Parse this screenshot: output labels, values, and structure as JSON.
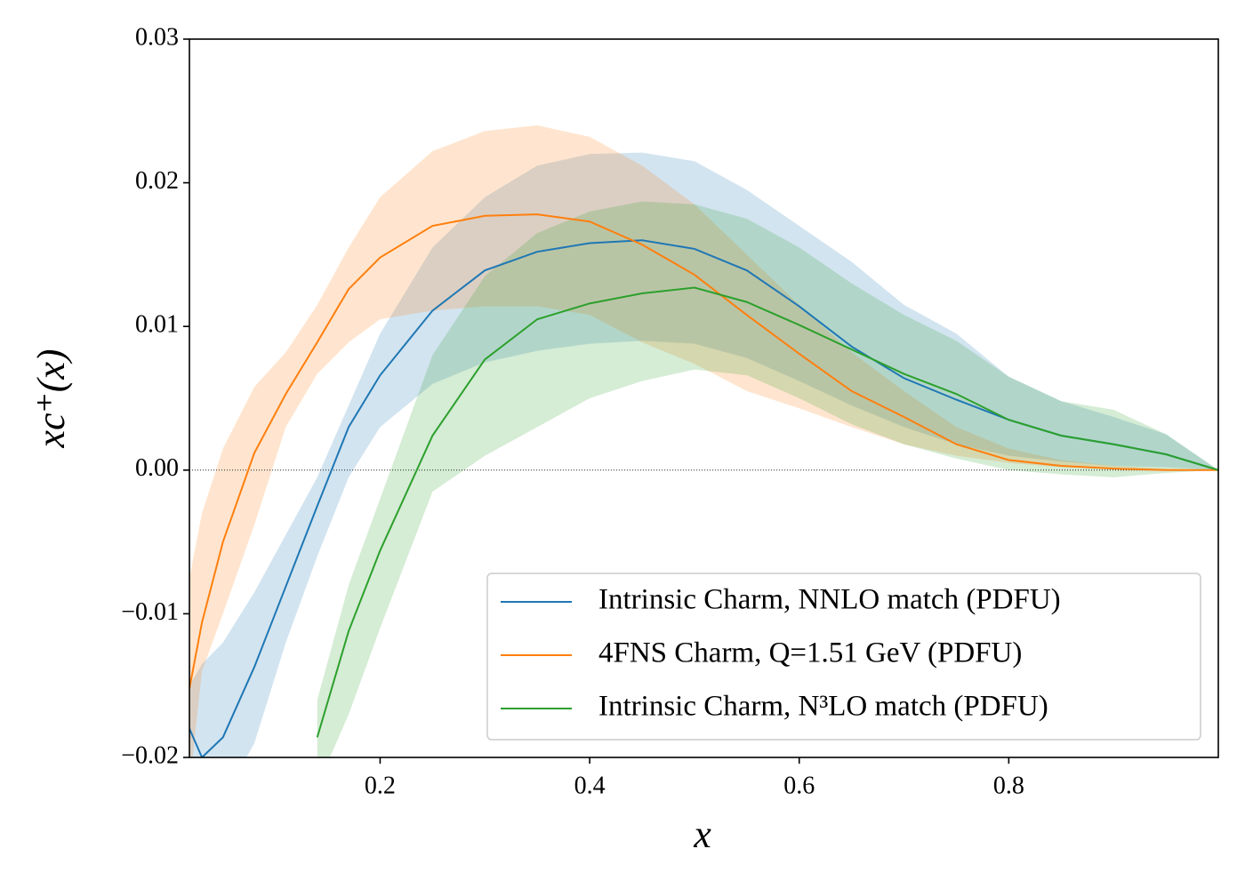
{
  "chart_data": {
    "type": "line",
    "x_label": "x",
    "y_label": "xc⁺(x)",
    "x": [
      0.018,
      0.03,
      0.05,
      0.08,
      0.11,
      0.14,
      0.17,
      0.2,
      0.25,
      0.3,
      0.35,
      0.4,
      0.45,
      0.5,
      0.55,
      0.6,
      0.65,
      0.7,
      0.75,
      0.8,
      0.85,
      0.9,
      0.95,
      1.0
    ],
    "series": [
      {
        "name": "Intrinsic Charm, NNLO match (PDFU)",
        "color": "#1f77b4",
        "values": [
          -0.018,
          -0.02,
          -0.0186,
          -0.0137,
          -0.0081,
          -0.0025,
          0.003,
          0.0066,
          0.0111,
          0.0139,
          0.0152,
          0.0158,
          0.016,
          0.0154,
          0.0139,
          0.0114,
          0.0086,
          0.0064,
          0.0049,
          0.0035,
          0.0024,
          0.0018,
          0.0011,
          0
        ],
        "upper": [
          -0.015,
          -0.0135,
          -0.012,
          -0.0085,
          -0.0045,
          -0.0005,
          0.0045,
          0.0095,
          0.0155,
          0.019,
          0.0212,
          0.022,
          0.0221,
          0.0215,
          0.0195,
          0.017,
          0.0145,
          0.0115,
          0.0095,
          0.0065,
          0.0048,
          0.0037,
          0.0025,
          0
        ],
        "lower": [
          -0.022,
          -0.024,
          -0.023,
          -0.019,
          -0.012,
          -0.006,
          -0.0005,
          0.003,
          0.006,
          0.0075,
          0.0083,
          0.0088,
          0.009,
          0.0088,
          0.0078,
          0.0062,
          0.0045,
          0.003,
          0.0018,
          0.001,
          0.0006,
          0.0003,
          0.0002,
          0
        ]
      },
      {
        "name": "4FNS Charm, Q=1.51 GeV (PDFU)",
        "color": "#ff7f0e",
        "values": [
          -0.0152,
          -0.0106,
          -0.005,
          0.0012,
          0.0053,
          0.0089,
          0.0126,
          0.0148,
          0.017,
          0.0177,
          0.0178,
          0.0173,
          0.0157,
          0.0136,
          0.0108,
          0.0081,
          0.0055,
          0.0037,
          0.0018,
          0.0007,
          0.0003,
          0.0001,
          0,
          0
        ],
        "upper": [
          -0.0075,
          -0.003,
          0.0015,
          0.0058,
          0.0082,
          0.0115,
          0.0155,
          0.019,
          0.0222,
          0.0236,
          0.024,
          0.0232,
          0.0212,
          0.0185,
          0.015,
          0.0115,
          0.0082,
          0.0055,
          0.003,
          0.0015,
          0.0007,
          0.0003,
          0.0001,
          0
        ],
        "lower": [
          -0.022,
          -0.014,
          -0.01,
          -0.0038,
          0.003,
          0.0067,
          0.0089,
          0.0105,
          0.0111,
          0.0114,
          0.0114,
          0.0108,
          0.0089,
          0.0074,
          0.0055,
          0.0043,
          0.003,
          0.0018,
          0.001,
          0.0005,
          0.0002,
          0.0001,
          0,
          0
        ]
      },
      {
        "name": "Intrinsic Charm, N³LO match (PDFU)",
        "color": "#2ca02c",
        "values": [
          null,
          null,
          null,
          null,
          null,
          -0.0186,
          -0.0112,
          -0.0056,
          0.0024,
          0.0077,
          0.0105,
          0.0116,
          0.0123,
          0.0127,
          0.0117,
          0.0101,
          0.0084,
          0.0067,
          0.0053,
          0.0035,
          0.0024,
          0.0018,
          0.0011,
          0
        ],
        "upper": [
          null,
          null,
          null,
          null,
          null,
          -0.016,
          -0.008,
          -0.002,
          0.008,
          0.0135,
          0.0165,
          0.018,
          0.0187,
          0.0185,
          0.0175,
          0.0155,
          0.013,
          0.0108,
          0.009,
          0.0065,
          0.0048,
          0.0042,
          0.0025,
          0
        ],
        "lower": [
          null,
          null,
          null,
          null,
          null,
          -0.022,
          -0.017,
          -0.011,
          -0.0015,
          0.001,
          0.003,
          0.005,
          0.0062,
          0.007,
          0.0066,
          0.005,
          0.0032,
          0.0018,
          0.0008,
          0,
          -0.0003,
          -0.0005,
          -0.0002,
          0
        ]
      }
    ],
    "band_opacity": 0.2,
    "xlim": [
      0.018,
      1.0
    ],
    "ylim": [
      -0.02,
      0.03
    ],
    "xticks": [
      0.2,
      0.4,
      0.6,
      0.8
    ],
    "yticks": [
      {
        "value": -0.02,
        "label": "−0.02"
      },
      {
        "value": -0.01,
        "label": "−0.01"
      },
      {
        "value": 0,
        "label": "0.00"
      },
      0.01,
      0.02,
      0.03
    ],
    "hline": 0,
    "legend": "lower right"
  }
}
